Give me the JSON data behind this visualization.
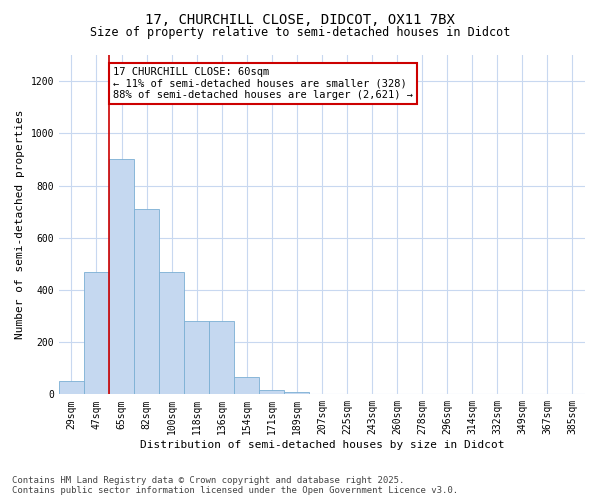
{
  "title_line1": "17, CHURCHILL CLOSE, DIDCOT, OX11 7BX",
  "title_line2": "Size of property relative to semi-detached houses in Didcot",
  "xlabel": "Distribution of semi-detached houses by size in Didcot",
  "ylabel": "Number of semi-detached properties",
  "categories": [
    "29sqm",
    "47sqm",
    "65sqm",
    "82sqm",
    "100sqm",
    "118sqm",
    "136sqm",
    "154sqm",
    "171sqm",
    "189sqm",
    "207sqm",
    "225sqm",
    "243sqm",
    "260sqm",
    "278sqm",
    "296sqm",
    "314sqm",
    "332sqm",
    "349sqm",
    "367sqm",
    "385sqm"
  ],
  "values": [
    50,
    470,
    900,
    710,
    470,
    280,
    280,
    65,
    15,
    10,
    0,
    0,
    0,
    0,
    0,
    0,
    0,
    0,
    0,
    0,
    0
  ],
  "bar_color": "#c5d8f0",
  "bar_edge_color": "#7bafd4",
  "vline_x_idx": 2,
  "vline_color": "#cc0000",
  "annotation_text": "17 CHURCHILL CLOSE: 60sqm\n← 11% of semi-detached houses are smaller (328)\n88% of semi-detached houses are larger (2,621) →",
  "annotation_box_facecolor": "#ffffff",
  "annotation_box_edgecolor": "#cc0000",
  "ylim": [
    0,
    1300
  ],
  "yticks": [
    0,
    200,
    400,
    600,
    800,
    1000,
    1200
  ],
  "background_color": "#ffffff",
  "grid_color": "#c8d8f0",
  "footer_line1": "Contains HM Land Registry data © Crown copyright and database right 2025.",
  "footer_line2": "Contains public sector information licensed under the Open Government Licence v3.0.",
  "title_fontsize": 10,
  "subtitle_fontsize": 8.5,
  "axis_label_fontsize": 8,
  "tick_fontsize": 7,
  "annotation_fontsize": 7.5,
  "footer_fontsize": 6.5
}
